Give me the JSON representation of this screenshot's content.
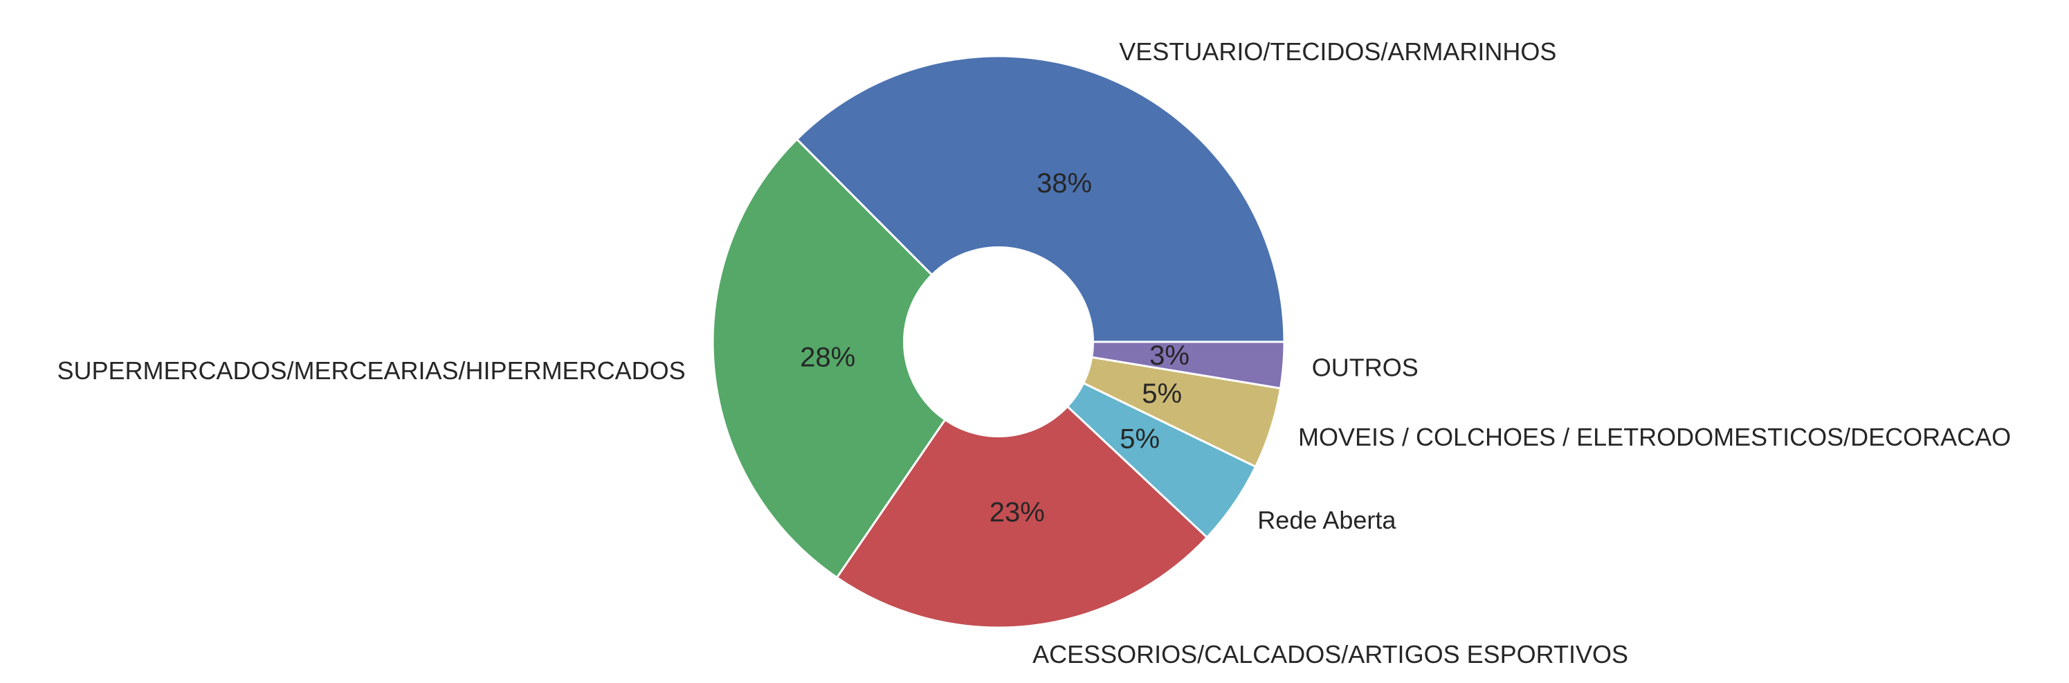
{
  "chart_data": {
    "type": "pie",
    "donut": true,
    "labels": [
      "VESTUARIO/TECIDOS/ARMARINHOS",
      "SUPERMERCADOS/MERCEARIAS/HIPERMERCADOS",
      "ACESSORIOS/CALCADOS/ARTIGOS ESPORTIVOS",
      "Rede Aberta",
      "MOVEIS / COLCHOES / ELETRODOMESTICOS/DECORACAO",
      "OUTROS"
    ],
    "values": [
      37.5,
      28.0,
      22.6,
      4.8,
      4.6,
      2.6
    ],
    "percent_labels": [
      "38%",
      "28%",
      "23%",
      "5%",
      "5%",
      "3%"
    ],
    "colors": [
      "#4c72b0",
      "#55a868",
      "#c44e52",
      "#64b5cd",
      "#ccb974",
      "#8172b2"
    ],
    "start_angle_deg": 0,
    "direction": "counterclockwise",
    "legend": "none"
  }
}
